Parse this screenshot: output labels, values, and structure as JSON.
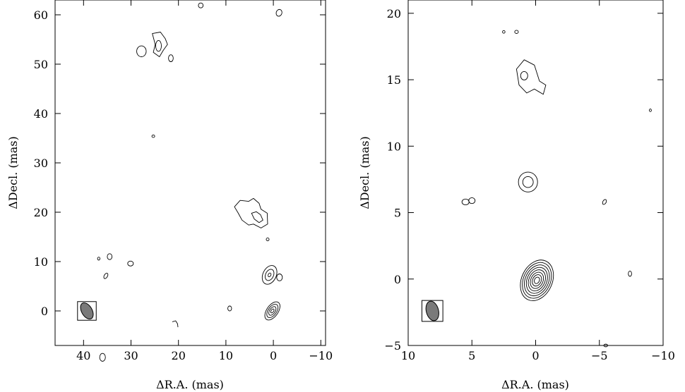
{
  "chart_data": [
    {
      "type": "contour",
      "xlabel": "ΔR.A. (mas)",
      "ylabel": "ΔDecl. (mas)",
      "xlim": [
        46,
        -11
      ],
      "ylim": [
        -7,
        63
      ],
      "x_reversed": true,
      "xticks": [
        40,
        30,
        20,
        10,
        0,
        -10
      ],
      "xtick_labels": [
        "40",
        "30",
        "20",
        "10",
        "0",
        "−10"
      ],
      "yticks": [
        0,
        10,
        20,
        30,
        40,
        50,
        60
      ],
      "ytick_labels": [
        "0",
        "10",
        "20",
        "30",
        "40",
        "50",
        "60"
      ],
      "beam": {
        "x": 39.3,
        "y": 0,
        "major": 1.8,
        "minor": 1.1,
        "pa": -30
      },
      "components": [
        {
          "x": 0.2,
          "y": 0,
          "levels": 6,
          "a": 1.2,
          "b": 2.1,
          "pa": 35,
          "step": 0.26
        },
        {
          "x": 0.8,
          "y": 7.3,
          "levels": 3,
          "a": 1.4,
          "b": 2.0,
          "pa": 25,
          "step": 0.4
        },
        {
          "x": -1.3,
          "y": 6.8,
          "levels": 1,
          "a": 0.6,
          "b": 0.7,
          "pa": 0,
          "step": 0
        },
        {
          "x": 1.2,
          "y": 14.5,
          "levels": 1,
          "a": 0.3,
          "b": 0.3,
          "pa": 0,
          "step": 0
        },
        {
          "x": 9.2,
          "y": 0.5,
          "levels": 1,
          "a": 0.4,
          "b": 0.5,
          "pa": 0,
          "step": 0
        },
        {
          "x": 30.1,
          "y": 9.6,
          "levels": 1,
          "a": 0.6,
          "b": 0.5,
          "pa": 0,
          "step": 0
        },
        {
          "x": 34.5,
          "y": 11.0,
          "levels": 1,
          "a": 0.5,
          "b": 0.6,
          "pa": 0,
          "step": 0
        },
        {
          "x": 36.8,
          "y": 10.6,
          "levels": 1,
          "a": 0.25,
          "b": 0.3,
          "pa": 0,
          "step": 0
        },
        {
          "x": 35.3,
          "y": 7.1,
          "levels": 1,
          "a": 0.35,
          "b": 0.6,
          "pa": 30,
          "step": 0
        },
        {
          "x": 27.8,
          "y": 52.6,
          "levels": 1,
          "a": 1.0,
          "b": 1.1,
          "pa": 0,
          "step": 0
        },
        {
          "x": 24.2,
          "y": 53.7,
          "levels": 1,
          "a": 0.6,
          "b": 1.1,
          "pa": 0,
          "step": 0
        },
        {
          "x": 21.6,
          "y": 51.2,
          "levels": 1,
          "a": 0.5,
          "b": 0.7,
          "pa": 0,
          "step": 0
        },
        {
          "x": 25.3,
          "y": 35.4,
          "levels": 1,
          "a": 0.3,
          "b": 0.25,
          "pa": 0,
          "step": 0
        },
        {
          "x": 15.3,
          "y": 61.9,
          "levels": 1,
          "a": 0.5,
          "b": 0.5,
          "pa": 0,
          "step": 0
        },
        {
          "x": -1.2,
          "y": 60.4,
          "levels": 1,
          "a": 0.6,
          "b": 0.7,
          "pa": 20,
          "step": 0
        },
        {
          "x": 36.0,
          "y": -9.4,
          "levels": 1,
          "a": 0.6,
          "b": 0.8,
          "pa": 0,
          "step": 0
        }
      ],
      "outlines": [
        {
          "points": [
            [
              25.5,
              56.2
            ],
            [
              23.8,
              56.5
            ],
            [
              22.8,
              55.2
            ],
            [
              22.3,
              54.0
            ],
            [
              23.2,
              52.8
            ],
            [
              24.0,
              51.5
            ],
            [
              25.3,
              52.4
            ],
            [
              24.9,
              54.0
            ]
          ]
        },
        {
          "points": [
            [
              8.2,
              21.1
            ],
            [
              7.0,
              22.4
            ],
            [
              5.2,
              22.2
            ],
            [
              4.2,
              22.8
            ],
            [
              3.0,
              21.8
            ],
            [
              2.6,
              20.6
            ],
            [
              1.3,
              19.8
            ],
            [
              1.2,
              17.6
            ],
            [
              2.6,
              16.8
            ],
            [
              4.2,
              17.6
            ],
            [
              5.2,
              17.4
            ],
            [
              6.6,
              18.4
            ],
            [
              7.4,
              19.8
            ]
          ]
        },
        {
          "points": [
            [
              4.6,
              19.8
            ],
            [
              3.6,
              20.1
            ],
            [
              2.7,
              19.5
            ],
            [
              2.2,
              18.4
            ],
            [
              3.0,
              17.9
            ],
            [
              4.0,
              18.6
            ]
          ]
        },
        {
          "points": [
            [
              21.3,
              -2.2
            ],
            [
              20.6,
              -2.0
            ],
            [
              20.2,
              -2.6
            ],
            [
              20.1,
              -3.3
            ]
          ],
          "open": true
        }
      ]
    },
    {
      "type": "contour",
      "xlabel": "ΔR.A. (mas)",
      "ylabel": "ΔDecl. (mas)",
      "xlim": [
        10,
        -10
      ],
      "ylim": [
        -5,
        21
      ],
      "x_reversed": true,
      "xticks": [
        10,
        5,
        0,
        -5,
        -10
      ],
      "xtick_labels": [
        "10",
        "5",
        "0",
        "−5",
        "−10"
      ],
      "yticks": [
        -5,
        0,
        5,
        10,
        15,
        20
      ],
      "ytick_labels": [
        "−5",
        "0",
        "5",
        "10",
        "15",
        "20"
      ],
      "beam": {
        "x": 8.1,
        "y": -2.4,
        "major": 0.75,
        "minor": 0.48,
        "pa": -15
      },
      "components": [
        {
          "x": -0.1,
          "y": -0.1,
          "levels": 8,
          "a": 1.2,
          "b": 1.6,
          "pa": 25,
          "step": 0.12
        },
        {
          "x": 0.6,
          "y": 7.3,
          "levels": 2,
          "a": 0.75,
          "b": 0.75,
          "pa": 0,
          "step": 0.45
        },
        {
          "x": 0.9,
          "y": 15.3,
          "levels": 1,
          "a": 0.28,
          "b": 0.32,
          "pa": 0,
          "step": 0
        },
        {
          "x": 5.5,
          "y": 5.8,
          "levels": 1,
          "a": 0.28,
          "b": 0.22,
          "pa": 0,
          "step": 0
        },
        {
          "x": 5.0,
          "y": 5.9,
          "levels": 1,
          "a": 0.25,
          "b": 0.22,
          "pa": 0,
          "step": 0
        },
        {
          "x": -5.4,
          "y": 5.8,
          "levels": 1,
          "a": 0.13,
          "b": 0.2,
          "pa": 30,
          "step": 0
        },
        {
          "x": -7.4,
          "y": 0.4,
          "levels": 1,
          "a": 0.13,
          "b": 0.2,
          "pa": 0,
          "step": 0
        },
        {
          "x": 2.5,
          "y": 18.6,
          "levels": 1,
          "a": 0.1,
          "b": 0.1,
          "pa": 0,
          "step": 0
        },
        {
          "x": 1.5,
          "y": 18.6,
          "levels": 1,
          "a": 0.14,
          "b": 0.12,
          "pa": 0,
          "step": 0
        },
        {
          "x": -9.0,
          "y": 12.7,
          "levels": 1,
          "a": 0.08,
          "b": 0.1,
          "pa": 0,
          "step": 0
        },
        {
          "x": -5.5,
          "y": -5.0,
          "levels": 1,
          "a": 0.15,
          "b": 0.1,
          "pa": 0,
          "step": 0
        }
      ],
      "outlines": [
        {
          "points": [
            [
              1.5,
              15.8
            ],
            [
              0.9,
              16.5
            ],
            [
              0.1,
              16.1
            ],
            [
              -0.3,
              14.9
            ],
            [
              -0.8,
              14.6
            ],
            [
              -0.6,
              13.9
            ],
            [
              0.1,
              14.3
            ],
            [
              0.7,
              14.0
            ],
            [
              1.3,
              14.6
            ]
          ]
        }
      ]
    }
  ]
}
